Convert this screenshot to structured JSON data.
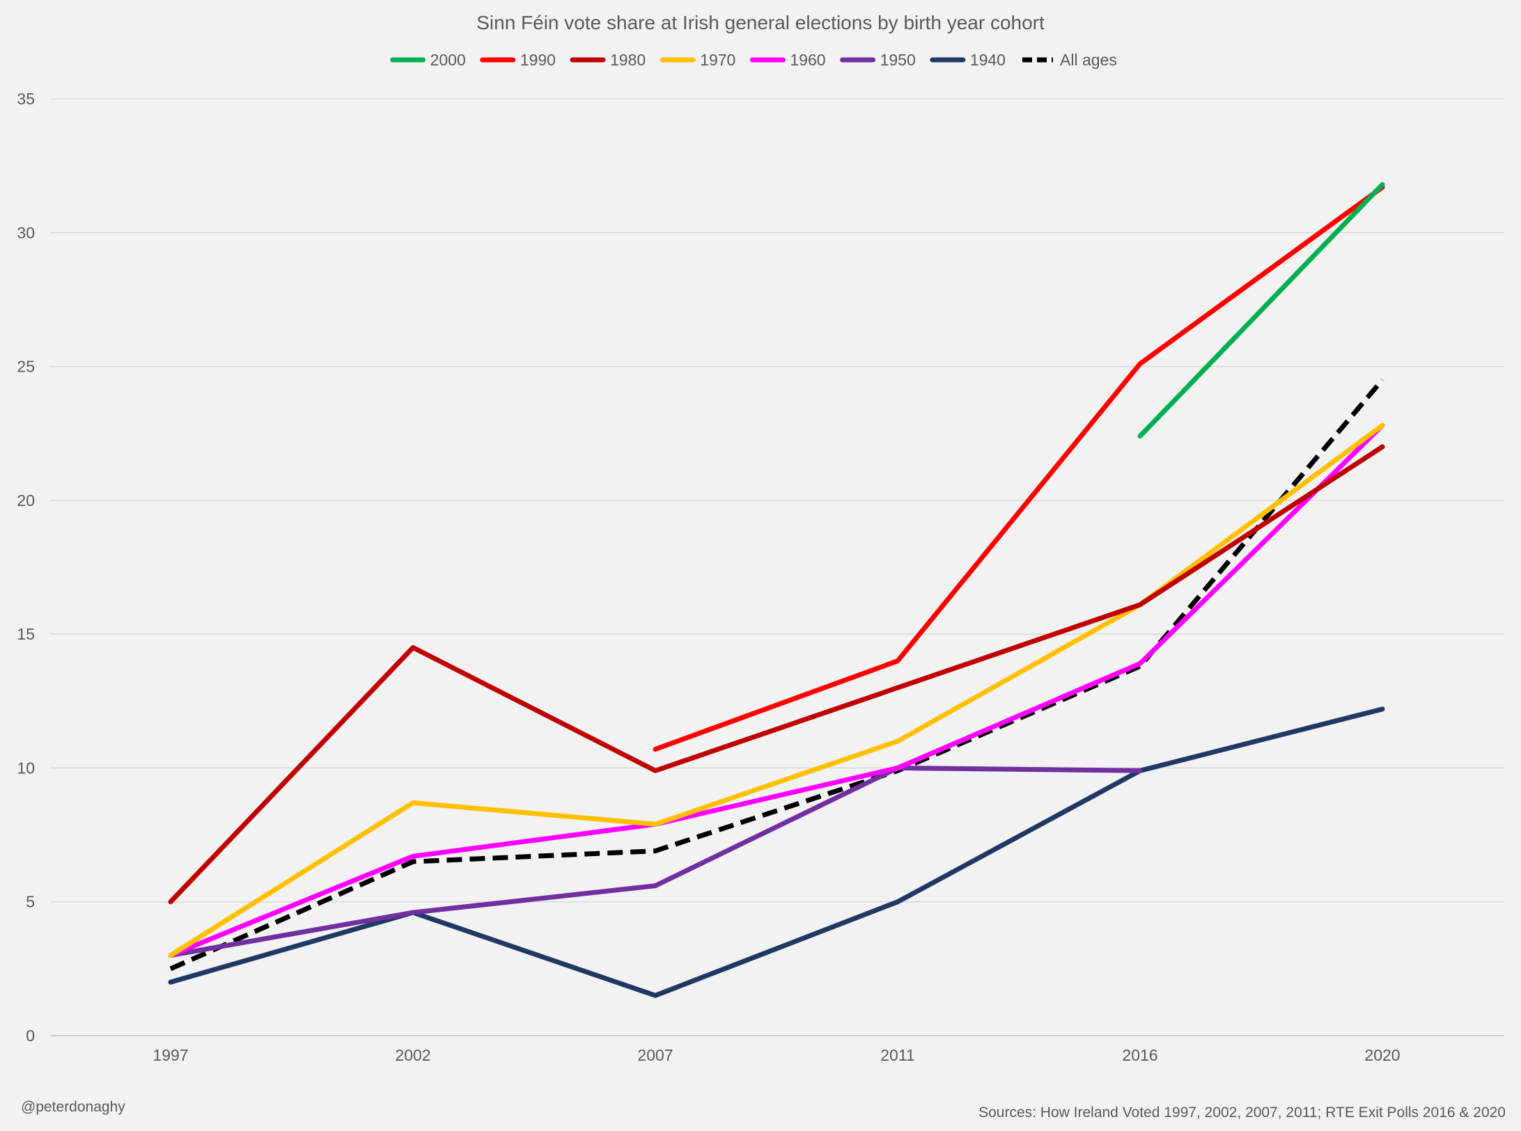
{
  "chart_data": {
    "type": "line",
    "title": "Sinn Féin vote share at Irish general elections by birth year cohort",
    "categories": [
      "1997",
      "2002",
      "2007",
      "2011",
      "2016",
      "2020"
    ],
    "ylim": [
      0,
      35
    ],
    "yticks": [
      0,
      5,
      10,
      15,
      20,
      25,
      30,
      35
    ],
    "grid": true,
    "legend_position": "top",
    "series": [
      {
        "name": "2000",
        "color": "#00b050",
        "dash": false,
        "values": [
          null,
          null,
          null,
          null,
          22.4,
          31.8
        ]
      },
      {
        "name": "1990",
        "color": "#ff0000",
        "dash": false,
        "values": [
          null,
          null,
          10.7,
          14.0,
          25.1,
          31.7
        ]
      },
      {
        "name": "1980",
        "color": "#c00000",
        "dash": false,
        "values": [
          5.0,
          14.5,
          9.9,
          13.0,
          16.1,
          22.0
        ]
      },
      {
        "name": "1970",
        "color": "#ffc000",
        "dash": false,
        "values": [
          3.0,
          8.7,
          7.9,
          11.0,
          16.1,
          22.8
        ]
      },
      {
        "name": "1960",
        "color": "#ff00ff",
        "dash": false,
        "values": [
          3.0,
          6.7,
          7.9,
          10.0,
          13.9,
          22.8
        ]
      },
      {
        "name": "1950",
        "color": "#7030a0",
        "dash": false,
        "values": [
          3.0,
          4.6,
          5.6,
          10.0,
          9.9,
          null
        ]
      },
      {
        "name": "1940",
        "color": "#203864",
        "dash": false,
        "values": [
          2.0,
          4.6,
          1.5,
          5.0,
          9.9,
          12.2
        ]
      },
      {
        "name": "All ages",
        "color": "#000000",
        "dash": true,
        "values": [
          2.5,
          6.5,
          6.9,
          9.9,
          13.8,
          24.5
        ]
      }
    ],
    "credit": "@peterdonaghy",
    "source": "Sources: How Ireland Voted 1997, 2002, 2007, 2011; RTE Exit Polls 2016 & 2020"
  }
}
